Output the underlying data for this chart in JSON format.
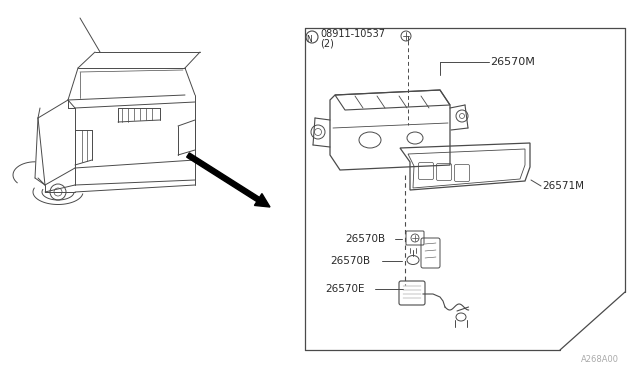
{
  "bg_color": "#ffffff",
  "line_color": "#4a4a4a",
  "text_color": "#2a2a2a",
  "watermark": "A268A00",
  "parts": {
    "bolt_label": "08911-10537",
    "bolt_qty": "(2)",
    "part_26570M": "26570M",
    "part_26571M": "26571M",
    "part_26570B_1": "26570B",
    "part_26570B_2": "26570B",
    "part_26570E": "26570E"
  }
}
